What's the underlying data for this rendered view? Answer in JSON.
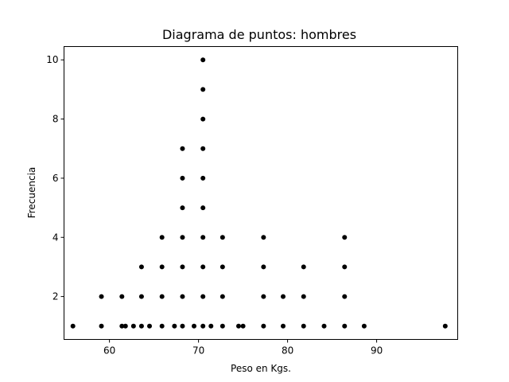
{
  "chart_data": {
    "type": "scatter",
    "title": "Diagrama de puntos: hombres",
    "xlabel": "Peso en Kgs.",
    "ylabel": "Frecuencia",
    "xlim": [
      54.9,
      99.1
    ],
    "ylim": [
      0.55,
      10.45
    ],
    "xticks": [
      60,
      70,
      80,
      90
    ],
    "yticks": [
      2,
      4,
      6,
      8,
      10
    ],
    "grid": false,
    "marker_color": "#000000",
    "points": [
      {
        "x": 55.9,
        "y": 1
      },
      {
        "x": 59.1,
        "y": 1
      },
      {
        "x": 59.1,
        "y": 2
      },
      {
        "x": 61.4,
        "y": 1
      },
      {
        "x": 61.4,
        "y": 2
      },
      {
        "x": 61.8,
        "y": 1
      },
      {
        "x": 62.7,
        "y": 1
      },
      {
        "x": 63.6,
        "y": 1
      },
      {
        "x": 63.6,
        "y": 2
      },
      {
        "x": 63.6,
        "y": 3
      },
      {
        "x": 64.5,
        "y": 1
      },
      {
        "x": 65.9,
        "y": 1
      },
      {
        "x": 65.9,
        "y": 2
      },
      {
        "x": 65.9,
        "y": 3
      },
      {
        "x": 65.9,
        "y": 4
      },
      {
        "x": 67.3,
        "y": 1
      },
      {
        "x": 68.2,
        "y": 1
      },
      {
        "x": 68.2,
        "y": 2
      },
      {
        "x": 68.2,
        "y": 3
      },
      {
        "x": 68.2,
        "y": 4
      },
      {
        "x": 68.2,
        "y": 5
      },
      {
        "x": 68.2,
        "y": 6
      },
      {
        "x": 68.2,
        "y": 7
      },
      {
        "x": 69.5,
        "y": 1
      },
      {
        "x": 70.5,
        "y": 1
      },
      {
        "x": 70.5,
        "y": 2
      },
      {
        "x": 70.5,
        "y": 3
      },
      {
        "x": 70.5,
        "y": 4
      },
      {
        "x": 70.5,
        "y": 5
      },
      {
        "x": 70.5,
        "y": 6
      },
      {
        "x": 70.5,
        "y": 7
      },
      {
        "x": 70.5,
        "y": 8
      },
      {
        "x": 70.5,
        "y": 9
      },
      {
        "x": 70.5,
        "y": 10
      },
      {
        "x": 71.4,
        "y": 1
      },
      {
        "x": 72.7,
        "y": 1
      },
      {
        "x": 72.7,
        "y": 2
      },
      {
        "x": 72.7,
        "y": 3
      },
      {
        "x": 72.7,
        "y": 4
      },
      {
        "x": 74.5,
        "y": 1
      },
      {
        "x": 75.0,
        "y": 1
      },
      {
        "x": 77.3,
        "y": 1
      },
      {
        "x": 77.3,
        "y": 2
      },
      {
        "x": 77.3,
        "y": 3
      },
      {
        "x": 77.3,
        "y": 4
      },
      {
        "x": 79.5,
        "y": 1
      },
      {
        "x": 79.5,
        "y": 2
      },
      {
        "x": 81.8,
        "y": 1
      },
      {
        "x": 81.8,
        "y": 2
      },
      {
        "x": 81.8,
        "y": 3
      },
      {
        "x": 84.1,
        "y": 1
      },
      {
        "x": 86.4,
        "y": 1
      },
      {
        "x": 86.4,
        "y": 2
      },
      {
        "x": 86.4,
        "y": 3
      },
      {
        "x": 86.4,
        "y": 4
      },
      {
        "x": 88.6,
        "y": 1
      },
      {
        "x": 97.7,
        "y": 1
      }
    ]
  }
}
